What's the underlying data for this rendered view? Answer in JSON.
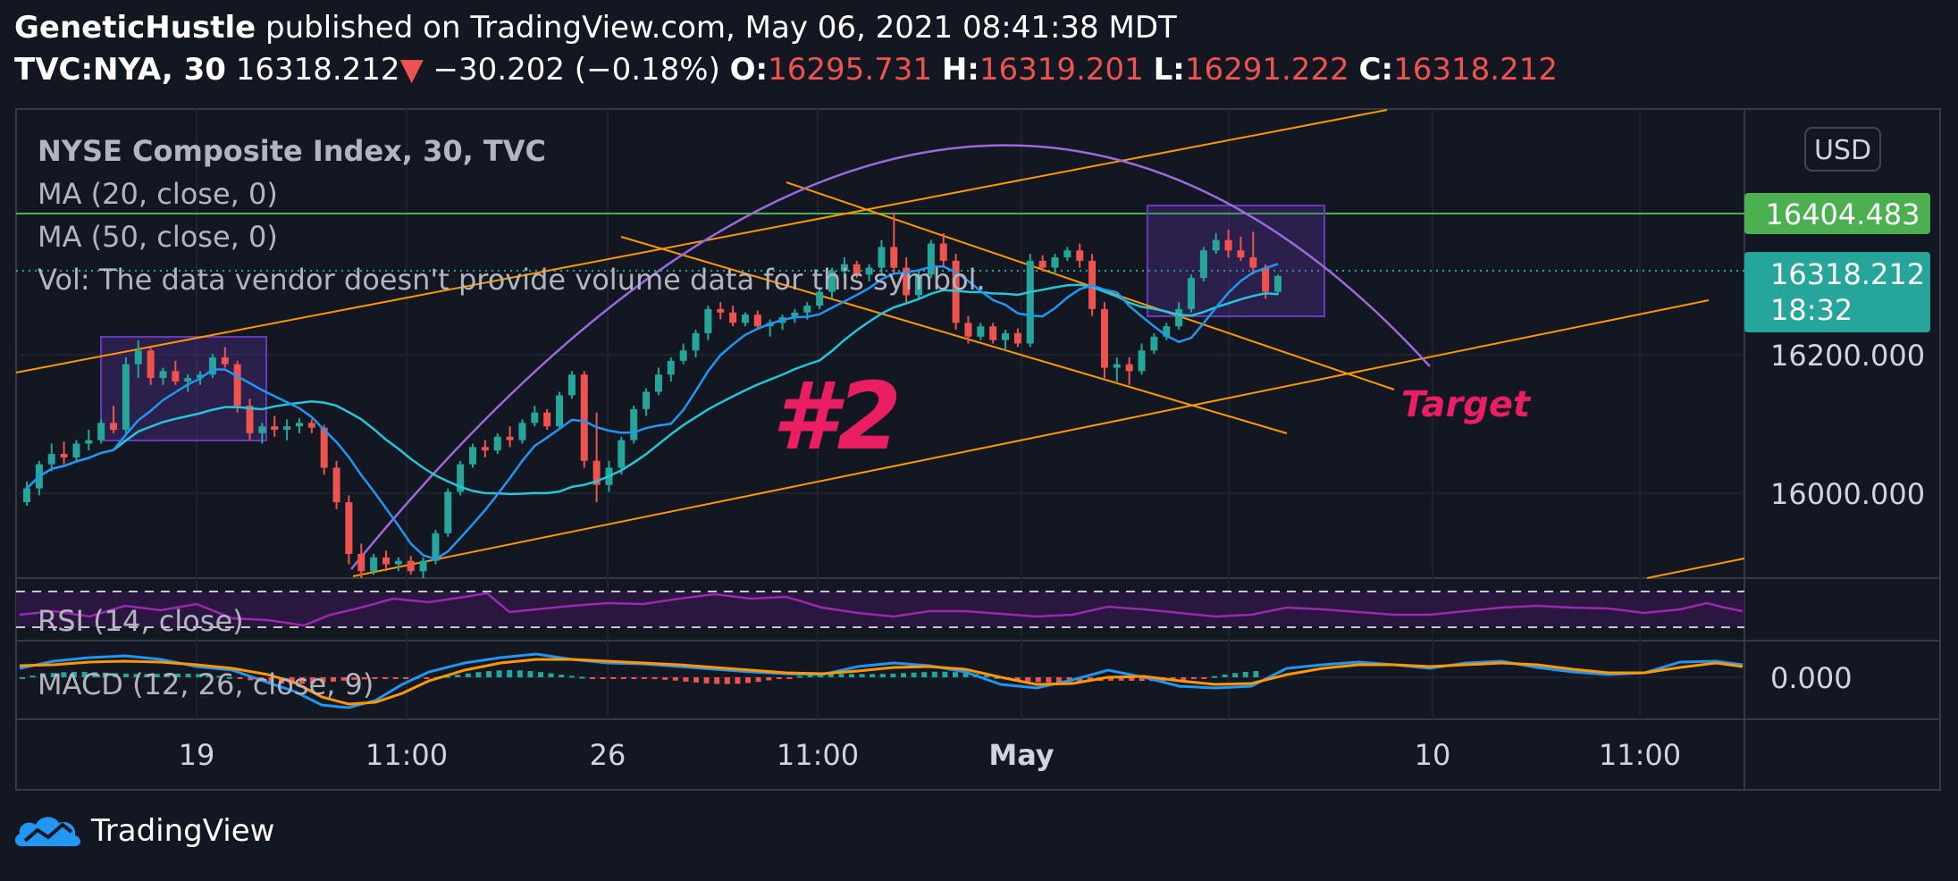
{
  "header": {
    "author": "GeneticHustle",
    "published_text": "published on TradingView.com, May 06, 2021 08:41:38 MDT",
    "symbol": "TVC:NYA, 30",
    "last_price": "16318.212",
    "change": "−30.202 (−0.18%)",
    "open_label": "O:",
    "open_value": "16295.731",
    "high_label": "H:",
    "high_value": "16319.201",
    "low_label": "L:",
    "low_value": "16291.222",
    "close_label": "C:",
    "close_value": "16318.212"
  },
  "legend": {
    "title": "NYSE Composite Index, 30, TVC",
    "ma20": "MA (20, close, 0)",
    "ma50": "MA (50, close, 0)",
    "vol": "Vol: The data vendor doesn't provide volume data for this symbol."
  },
  "currency": "USD",
  "price_labels": {
    "horizontal_line": "16404.483",
    "last": "16318.212",
    "countdown": "18:32"
  },
  "annotations": {
    "wave_label": "#2",
    "target_label": "Target"
  },
  "indicators": {
    "rsi_label": "RSI (14, close)",
    "macd_label": "MACD (12, 26, close, 9)",
    "macd_zero_tick": "0.000"
  },
  "footer": {
    "brand": "TradingView"
  },
  "colors": {
    "background": "#131722",
    "up_candle": "#26a69a",
    "down_candle": "#ef5350",
    "trendline": "#ff9800",
    "arc": "#9c6ade",
    "ma20": "#2196f3",
    "ma50": "#26c6da",
    "hline": "#4caf50",
    "annotation": "#e91e63",
    "box": "#673ab7",
    "rsi": "#9c27b0"
  },
  "chart_data": {
    "type": "candlestick",
    "title": "NYSE Composite Index, 30, TVC",
    "ylim": [
      15880,
      16560
    ],
    "x_tick_labels": [
      "19",
      "11:00",
      "26",
      "11:00",
      "May",
      "10",
      "11:00"
    ],
    "y_tick_labels": [
      "16200.000",
      "16000.000"
    ],
    "horizontal_level": 16404.483,
    "last_close": 16318.212,
    "ohlc": [
      [
        15990,
        16020,
        15985,
        16010
      ],
      [
        16010,
        16050,
        16000,
        16045
      ],
      [
        16045,
        16075,
        16035,
        16060
      ],
      [
        16060,
        16078,
        16045,
        16055
      ],
      [
        16055,
        16080,
        16050,
        16075
      ],
      [
        16075,
        16095,
        16065,
        16080
      ],
      [
        16080,
        16110,
        16075,
        16105
      ],
      [
        16105,
        16130,
        16090,
        16095
      ],
      [
        16095,
        16200,
        16090,
        16190
      ],
      [
        16190,
        16225,
        16170,
        16210
      ],
      [
        16210,
        16215,
        16160,
        16170
      ],
      [
        16170,
        16185,
        16160,
        16180
      ],
      [
        16180,
        16195,
        16160,
        16165
      ],
      [
        16165,
        16175,
        16150,
        16170
      ],
      [
        16170,
        16180,
        16160,
        16175
      ],
      [
        16175,
        16205,
        16170,
        16200
      ],
      [
        16200,
        16215,
        16185,
        16190
      ],
      [
        16190,
        16195,
        16120,
        16130
      ],
      [
        16130,
        16140,
        16080,
        16090
      ],
      [
        16090,
        16105,
        16075,
        16100
      ],
      [
        16100,
        16115,
        16085,
        16095
      ],
      [
        16095,
        16110,
        16080,
        16100
      ],
      [
        16100,
        16112,
        16090,
        16105
      ],
      [
        16105,
        16110,
        16090,
        16098
      ],
      [
        16098,
        16102,
        16030,
        16040
      ],
      [
        16040,
        16050,
        15980,
        15990
      ],
      [
        15990,
        16000,
        15900,
        15915
      ],
      [
        15915,
        15930,
        15880,
        15890
      ],
      [
        15890,
        15915,
        15885,
        15910
      ],
      [
        15910,
        15920,
        15890,
        15900
      ],
      [
        15900,
        15910,
        15890,
        15905
      ],
      [
        15905,
        15912,
        15885,
        15890
      ],
      [
        15890,
        15910,
        15880,
        15905
      ],
      [
        15905,
        15950,
        15900,
        15945
      ],
      [
        15945,
        16010,
        15940,
        16005
      ],
      [
        16005,
        16050,
        16000,
        16045
      ],
      [
        16045,
        16075,
        16040,
        16070
      ],
      [
        16070,
        16080,
        16055,
        16065
      ],
      [
        16065,
        16090,
        16060,
        16085
      ],
      [
        16085,
        16100,
        16070,
        16080
      ],
      [
        16080,
        16110,
        16075,
        16105
      ],
      [
        16105,
        16130,
        16100,
        16120
      ],
      [
        16120,
        16125,
        16095,
        16100
      ],
      [
        16100,
        16150,
        16098,
        16145
      ],
      [
        16145,
        16180,
        16140,
        16175
      ],
      [
        16175,
        16180,
        16040,
        16050
      ],
      [
        16050,
        16120,
        15990,
        16015
      ],
      [
        16015,
        16050,
        16005,
        16040
      ],
      [
        16040,
        16085,
        16030,
        16080
      ],
      [
        16080,
        16130,
        16075,
        16125
      ],
      [
        16125,
        16155,
        16115,
        16150
      ],
      [
        16150,
        16185,
        16145,
        16175
      ],
      [
        16175,
        16200,
        16165,
        16195
      ],
      [
        16195,
        16220,
        16190,
        16210
      ],
      [
        16210,
        16240,
        16200,
        16235
      ],
      [
        16235,
        16275,
        16225,
        16270
      ],
      [
        16270,
        16280,
        16255,
        16265
      ],
      [
        16265,
        16275,
        16245,
        16250
      ],
      [
        16250,
        16265,
        16245,
        16262
      ],
      [
        16262,
        16268,
        16240,
        16245
      ],
      [
        16245,
        16255,
        16230,
        16250
      ],
      [
        16250,
        16262,
        16240,
        16258
      ],
      [
        16258,
        16270,
        16250,
        16265
      ],
      [
        16265,
        16280,
        16255,
        16275
      ],
      [
        16275,
        16300,
        16270,
        16295
      ],
      [
        16295,
        16330,
        16285,
        16325
      ],
      [
        16325,
        16345,
        16315,
        16335
      ],
      [
        16335,
        16340,
        16315,
        16320
      ],
      [
        16320,
        16335,
        16310,
        16330
      ],
      [
        16330,
        16370,
        16320,
        16360
      ],
      [
        16360,
        16410,
        16320,
        16330
      ],
      [
        16330,
        16345,
        16280,
        16290
      ],
      [
        16290,
        16325,
        16285,
        16320
      ],
      [
        16320,
        16370,
        16315,
        16365
      ],
      [
        16365,
        16380,
        16330,
        16340
      ],
      [
        16340,
        16350,
        16240,
        16250
      ],
      [
        16250,
        16260,
        16220,
        16230
      ],
      [
        16230,
        16250,
        16225,
        16245
      ],
      [
        16245,
        16250,
        16220,
        16225
      ],
      [
        16225,
        16240,
        16210,
        16235
      ],
      [
        16235,
        16242,
        16215,
        16220
      ],
      [
        16220,
        16350,
        16215,
        16340
      ],
      [
        16340,
        16348,
        16325,
        16330
      ],
      [
        16330,
        16350,
        16320,
        16345
      ],
      [
        16345,
        16360,
        16340,
        16355
      ],
      [
        16355,
        16365,
        16330,
        16340
      ],
      [
        16340,
        16350,
        16260,
        16270
      ],
      [
        16270,
        16280,
        16170,
        16185
      ],
      [
        16185,
        16200,
        16165,
        16190
      ],
      [
        16190,
        16200,
        16160,
        16180
      ],
      [
        16180,
        16220,
        16175,
        16210
      ],
      [
        16210,
        16235,
        16205,
        16230
      ],
      [
        16230,
        16250,
        16225,
        16245
      ],
      [
        16245,
        16280,
        16240,
        16270
      ],
      [
        16270,
        16320,
        16265,
        16315
      ],
      [
        16315,
        16360,
        16310,
        16355
      ],
      [
        16355,
        16380,
        16350,
        16370
      ],
      [
        16370,
        16385,
        16345,
        16355
      ],
      [
        16355,
        16375,
        16340,
        16345
      ],
      [
        16345,
        16382,
        16320,
        16330
      ],
      [
        16330,
        16335,
        16285,
        16295
      ],
      [
        16295,
        16320,
        16291,
        16318
      ]
    ]
  }
}
